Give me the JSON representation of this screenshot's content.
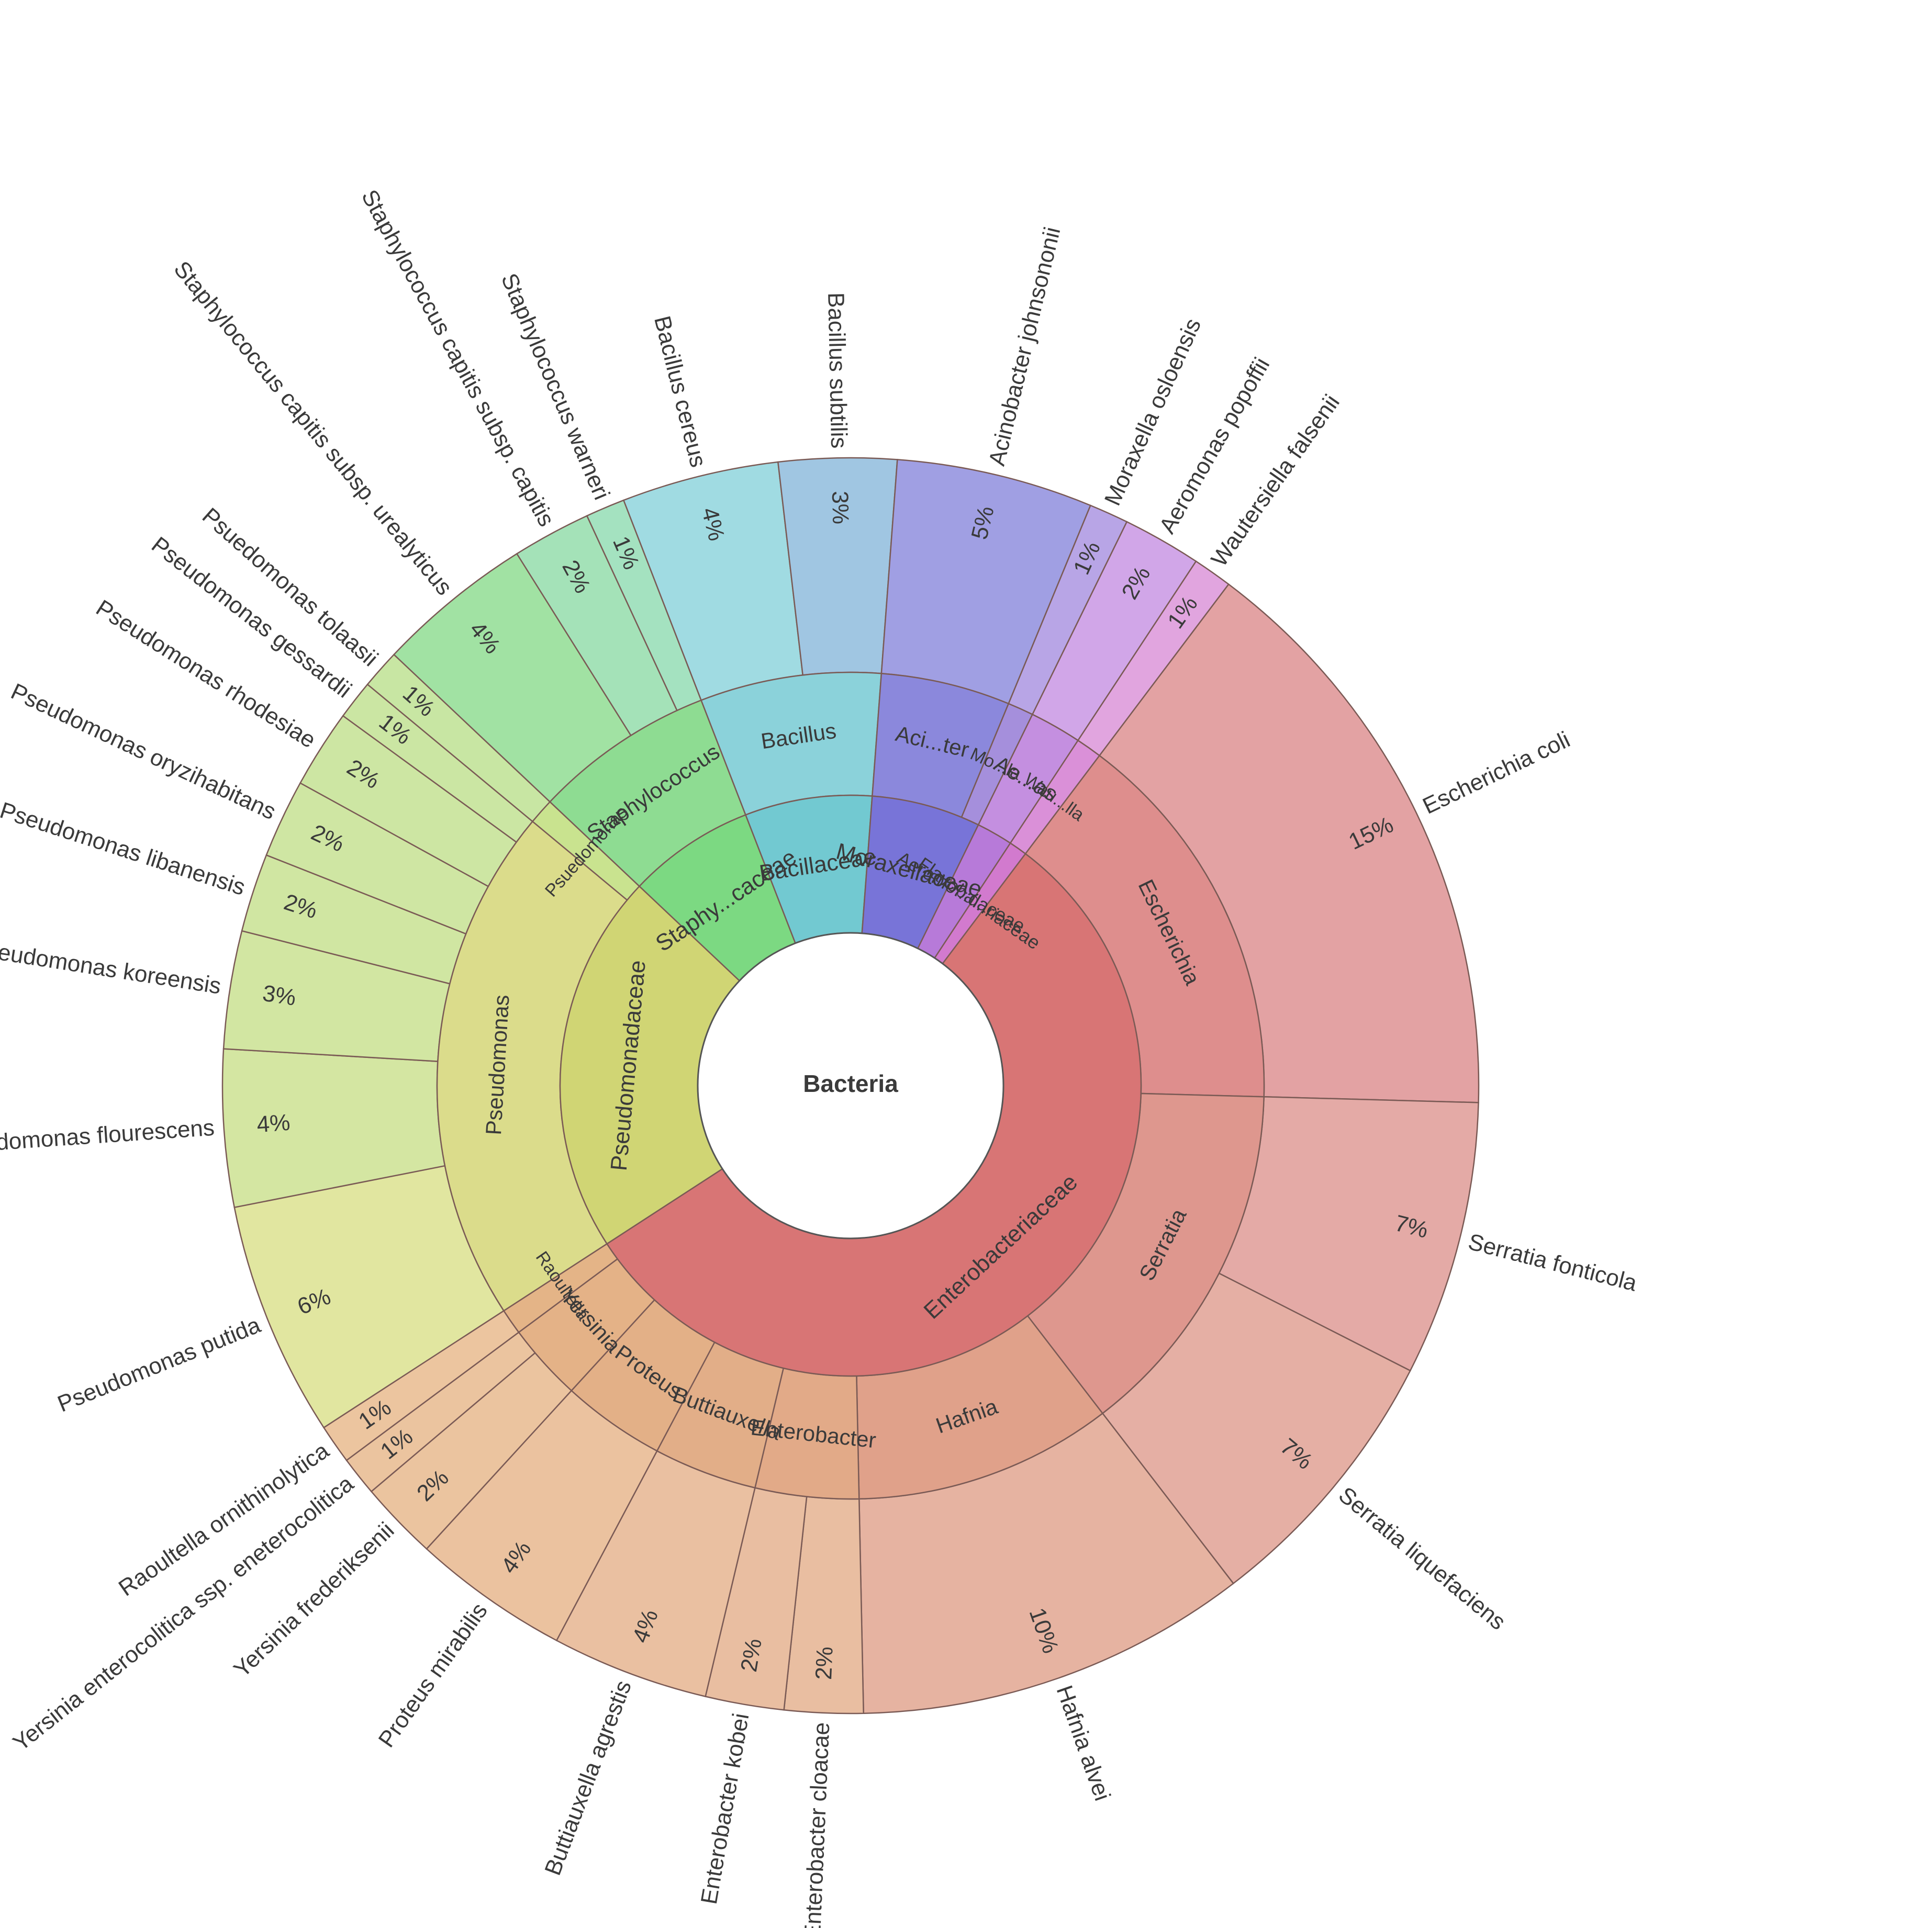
{
  "chart_data": {
    "type": "sunburst",
    "center_label": "Bacteria",
    "rings": [
      "family",
      "genus",
      "species"
    ],
    "tree": [
      {
        "name": "Enterobacteriaceae",
        "color": "#d87575",
        "genera": [
          {
            "name": "Escherichia",
            "color": "#de8e8d",
            "species": [
              {
                "name": "Escherichia coli",
                "label": "15%",
                "value": 15,
                "color": "#e3a2a3"
              }
            ]
          },
          {
            "name": "Serratia",
            "color": "#de978e",
            "species": [
              {
                "name": "Serratia fonticola",
                "label": "7%",
                "value": 7,
                "color": "#e4aaa6"
              },
              {
                "name": "Serratia liquefaciens",
                "label": "7%",
                "value": 7,
                "color": "#e5afa4"
              }
            ]
          },
          {
            "name": "Hafnia",
            "color": "#e0a18a",
            "species": [
              {
                "name": "Hafnia alvei",
                "label": "10%",
                "value": 10,
                "color": "#e6b3a1"
              }
            ]
          },
          {
            "name": "Enterobacter",
            "color": "#e2aa88",
            "species": [
              {
                "name": "Enterobacter cloacae",
                "label": "2%",
                "value": 2,
                "color": "#e9bea1"
              },
              {
                "name": "Enterobacter kobei",
                "label": "2%",
                "value": 2,
                "color": "#e9bea1"
              }
            ]
          },
          {
            "name": "Buttiauxella",
            "color": "#e2ae88",
            "species": [
              {
                "name": "Buttiauxella agrestis",
                "label": "4%",
                "value": 4,
                "color": "#eac0a1"
              }
            ]
          },
          {
            "name": "Proteus",
            "color": "#e3b087",
            "species": [
              {
                "name": "Proteus mirabilis",
                "label": "4%",
                "value": 4,
                "color": "#ebc29f"
              }
            ]
          },
          {
            "name": "Yersinia",
            "color": "#e4b287",
            "species": [
              {
                "name": "Yersinia frederiksenii",
                "label": "2%",
                "value": 2,
                "color": "#ebc49f"
              },
              {
                "name": "Yersinia enterocolitica ssp. eneterocolitica",
                "label": "1%",
                "value": 1,
                "color": "#ebc49f"
              }
            ]
          },
          {
            "name": "Raoultella",
            "color": "#e4b487",
            "species": [
              {
                "name": "Raoultella ornithinolytica",
                "label": "1%",
                "value": 1,
                "color": "#ecc59f"
              }
            ]
          }
        ]
      },
      {
        "name": "Pseudomonadaceae",
        "color": "#d0d574",
        "genera": [
          {
            "name": "Pseudomonas",
            "color": "#dbdc8b",
            "species": [
              {
                "name": "Pseudomonas putida",
                "label": "6%",
                "value": 6,
                "color": "#e1e6a0"
              },
              {
                "name": "Pseudomonas flourescens",
                "label": "4%",
                "value": 4,
                "color": "#d4e6a2"
              },
              {
                "name": "Pseudomonas koreensis",
                "label": "3%",
                "value": 3,
                "color": "#d2e6a2"
              },
              {
                "name": "Pseudomonas libanensis",
                "label": "2%",
                "value": 2,
                "color": "#d0e6a2"
              },
              {
                "name": "Pseudomonas oryzihabitans",
                "label": "2%",
                "value": 2,
                "color": "#cfe6a3"
              },
              {
                "name": "Pseudomonas rhodesiae",
                "label": "2%",
                "value": 2,
                "color": "#cde6a3"
              },
              {
                "name": "Pseudomonas gessardii",
                "label": "1%",
                "value": 1,
                "color": "#cbe6a3"
              }
            ]
          },
          {
            "name": "Psuedomonas",
            "color": "#c9e38f",
            "species": [
              {
                "name": "Psuedomonas tolaasii",
                "label": "1%",
                "value": 1,
                "color": "#c8e6a3"
              }
            ]
          }
        ]
      },
      {
        "name": "Staphy...caceae",
        "color": "#7cd982",
        "genera": [
          {
            "name": "Staphylococcus",
            "color": "#8edc92",
            "species": [
              {
                "name": "Staphylococcus capitis subsp. urealyticus",
                "label": "4%",
                "value": 4,
                "color": "#a1e2a3"
              },
              {
                "name": "Staphylococcus capitis subsp. capitis",
                "label": "2%",
                "value": 2,
                "color": "#a4e2b8"
              },
              {
                "name": "Staphylococcus warneri",
                "label": "1%",
                "value": 1,
                "color": "#a4e2c0"
              }
            ]
          }
        ]
      },
      {
        "name": "Bacillaceae",
        "color": "#72c9d1",
        "genera": [
          {
            "name": "Bacillus",
            "color": "#8bd2da",
            "species": [
              {
                "name": "Bacillus cereus",
                "label": "4%",
                "value": 4,
                "color": "#a0dbe2"
              },
              {
                "name": "Bacillus subtilis",
                "label": "3%",
                "value": 3,
                "color": "#a0c6e2"
              }
            ]
          }
        ]
      },
      {
        "name": "Moraxellaceae",
        "color": "#7874d8",
        "genera": [
          {
            "name": "Aci...ter",
            "color": "#8b88dc",
            "species": [
              {
                "name": "Acinobacter johnsononii",
                "label": "5%",
                "value": 5,
                "color": "#a09fe3"
              }
            ]
          },
          {
            "name": "Mo...la",
            "color": "#a58fdc",
            "species": [
              {
                "name": "Moraxella osloensis",
                "label": "1%",
                "value": 1,
                "color": "#b8a5e6"
              }
            ]
          }
        ]
      },
      {
        "name": "Aeromo...daceae",
        "color": "#b77ad9",
        "genera": [
          {
            "name": "Ae...as",
            "color": "#c48fe0",
            "species": [
              {
                "name": "Aeromonas popoffii",
                "label": "2%",
                "value": 2,
                "color": "#d1a6e8"
              }
            ]
          }
        ]
      },
      {
        "name": "Flavoba...riaceae",
        "color": "#d27ace",
        "genera": [
          {
            "name": "Wau...lla",
            "color": "#da90d8",
            "species": [
              {
                "name": "Wautersiella falsenii",
                "label": "1%",
                "value": 1,
                "color": "#e1a5df"
              }
            ]
          }
        ]
      }
    ]
  }
}
